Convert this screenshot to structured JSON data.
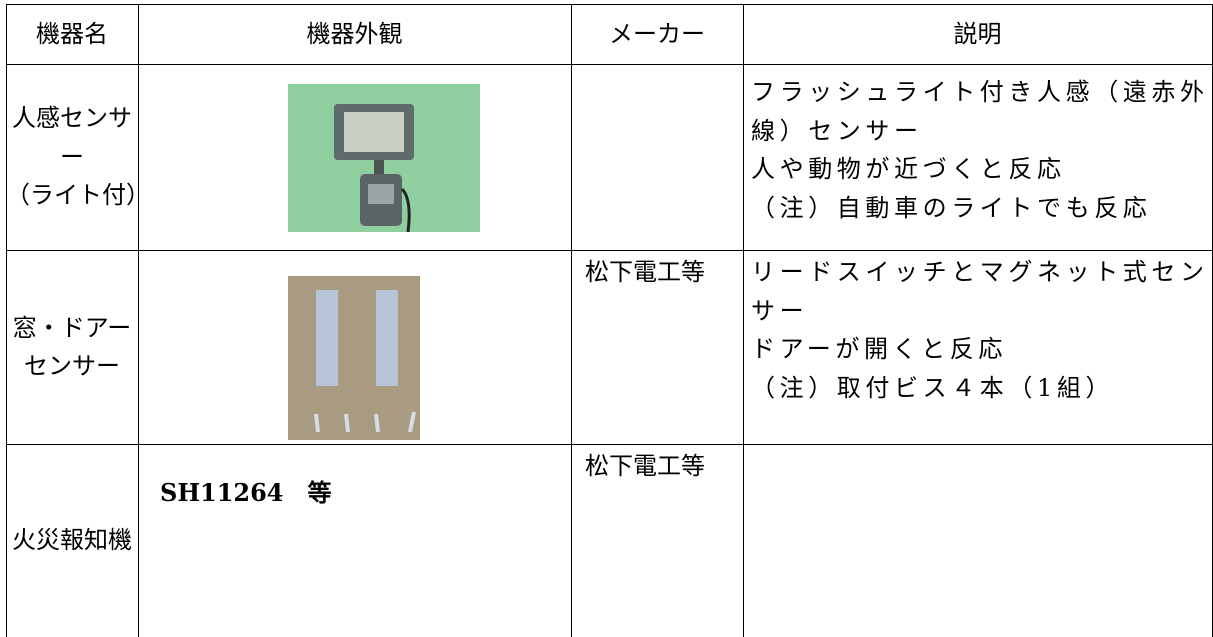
{
  "table": {
    "headers": [
      "機器名",
      "機器外観",
      "メーカー",
      "説明"
    ],
    "rows": [
      {
        "name": [
          "人感センサー",
          "（ライト付）"
        ],
        "appearance": null,
        "maker": null,
        "description": [
          "フラッシュライト付き人感（遠赤外線）センサー",
          "人や動物が近づくと反応",
          "（注）自動車のライトでも反応"
        ]
      },
      {
        "name": [
          "窓・ドアー",
          "センサー"
        ],
        "appearance": null,
        "maker": "松下電工等",
        "description": [
          "リードスイッチとマグネット式センサー",
          "ドアーが開くと反応",
          "（注）取付ビス４本（1組）"
        ]
      },
      {
        "name": [
          "火災報知機"
        ],
        "appearance": "SH11264　等",
        "maker": "松下電工等",
        "description": []
      }
    ]
  }
}
